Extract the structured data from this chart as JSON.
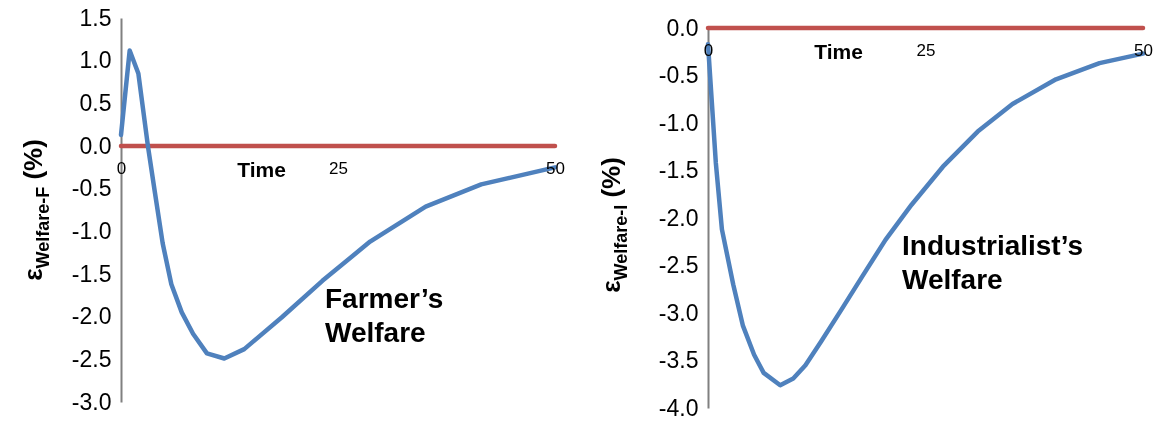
{
  "chart_data": [
    {
      "type": "line",
      "xlabel": "Time",
      "ylabel": "ε$_{Welfare-F}$ (%)",
      "xlim": [
        0,
        50
      ],
      "ylim": [
        -3.0,
        1.5
      ],
      "xticks": [
        0,
        25,
        50
      ],
      "yticks": [
        {
          "value": 1.5,
          "label": "1.5"
        },
        {
          "value": 1,
          "label": "1.0"
        },
        {
          "value": 0.5,
          "label": "0.5"
        },
        {
          "value": 0,
          "label": "0.0"
        },
        {
          "value": -0.5,
          "label": "-0.5"
        },
        {
          "value": -1,
          "label": "-1.0"
        },
        {
          "value": -1.5,
          "label": "-1.5"
        },
        {
          "value": -2,
          "label": "-2.0"
        },
        {
          "value": -2.5,
          "label": "-2.5"
        },
        {
          "value": -3,
          "label": "-3.0"
        }
      ],
      "grid": false,
      "line_style": "solid",
      "series": [
        {
          "color": "#c0504d",
          "x": [
            0,
            50
          ],
          "values": [
            0,
            0
          ]
        },
        {
          "color": "#4f81bd",
          "x": [
            0,
            1,
            2,
            3.1,
            3.9,
            4.8,
            5.8,
            7,
            8.3,
            9.9,
            11.9,
            14.2,
            18.5,
            23.2,
            28.7,
            35.1,
            41.5,
            50
          ],
          "values": [
            0.13,
            1.12,
            0.85,
            0,
            -0.54,
            -1.14,
            -1.62,
            -1.95,
            -2.2,
            -2.43,
            -2.49,
            -2.38,
            -2.01,
            -1.58,
            -1.12,
            -0.71,
            -0.45,
            -0.25
          ]
        }
      ],
      "annotations": [
        "Farmer’s Welfare"
      ]
    },
    {
      "type": "line",
      "xlabel": "Time",
      "ylabel": "ε$_{Welfare-I}$ (%)",
      "xlim": [
        0,
        50
      ],
      "ylim": [
        -4.0,
        0.0
      ],
      "xticks": [
        0,
        25,
        50
      ],
      "yticks": [
        {
          "value": 0,
          "label": "0.0"
        },
        {
          "value": -0.5,
          "label": "-0.5"
        },
        {
          "value": -1,
          "label": "-1.0"
        },
        {
          "value": -1.5,
          "label": "-1.5"
        },
        {
          "value": -2,
          "label": "-2.0"
        },
        {
          "value": -2.5,
          "label": "-2.5"
        },
        {
          "value": -3,
          "label": "-3.0"
        },
        {
          "value": -3.5,
          "label": "-3.5"
        },
        {
          "value": -4,
          "label": "-4.0"
        }
      ],
      "grid": false,
      "line_style": "solid",
      "series": [
        {
          "color": "#c0504d",
          "x": [
            0,
            50
          ],
          "values": [
            0,
            0
          ]
        },
        {
          "color": "#4f81bd",
          "x": [
            0,
            0.9,
            1.6,
            2.9,
            4,
            5.3,
            6.4,
            8.3,
            9.8,
            11.2,
            13,
            15.3,
            17.7,
            20.4,
            23.4,
            27,
            31,
            35,
            40,
            45,
            50
          ],
          "values": [
            -0.17,
            -1.42,
            -2.12,
            -2.7,
            -3.13,
            -3.44,
            -3.63,
            -3.76,
            -3.69,
            -3.55,
            -3.3,
            -2.97,
            -2.62,
            -2.23,
            -1.86,
            -1.46,
            -1.09,
            -0.8,
            -0.54,
            -0.37,
            -0.27
          ]
        }
      ],
      "annotations": [
        "Industrialist’s Welfare"
      ]
    }
  ]
}
